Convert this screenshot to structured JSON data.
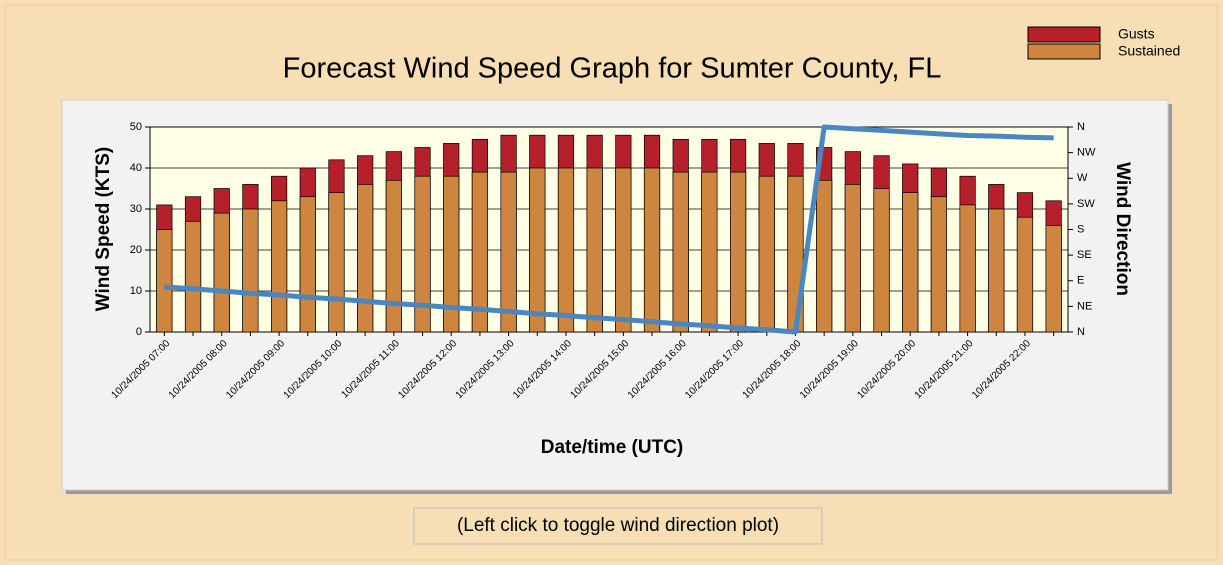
{
  "chart_data": {
    "type": "bar",
    "title": "Forecast Wind Speed Graph for Sumter County, FL",
    "xlabel": "Date/time (UTC)",
    "ylabel": "Wind Speed (KTS)",
    "y2label": "Wind Direction",
    "categories": [
      "10/24/2005 07:00",
      null,
      "10/24/2005 08:00",
      null,
      "10/24/2005 09:00",
      null,
      "10/24/2005 10:00",
      null,
      "10/24/2005 11:00",
      null,
      "10/24/2005 12:00",
      null,
      "10/24/2005 13:00",
      null,
      "10/24/2005 14:00",
      null,
      "10/24/2005 15:00",
      null,
      "10/24/2005 16:00",
      null,
      "10/24/2005 17:00",
      null,
      "10/24/2005 18:00",
      null,
      "10/24/2005 19:00",
      null,
      "10/24/2005 20:00",
      null,
      "10/24/2005 21:00",
      null,
      "10/24/2005 22:00",
      null
    ],
    "series": [
      {
        "name": "Gusts",
        "color": "#b5202a",
        "values": [
          31,
          33,
          35,
          36,
          38,
          40,
          42,
          43,
          44,
          45,
          46,
          47,
          48,
          48,
          48,
          48,
          48,
          48,
          47,
          47,
          47,
          46,
          46,
          45,
          44,
          43,
          41,
          40,
          38,
          36,
          34,
          32
        ]
      },
      {
        "name": "Sustained",
        "color": "#cd853f",
        "values": [
          25,
          27,
          29,
          30,
          32,
          33,
          34,
          36,
          37,
          38,
          38,
          39,
          39,
          40,
          40,
          40,
          40,
          40,
          39,
          39,
          39,
          38,
          38,
          37,
          36,
          35,
          34,
          33,
          31,
          30,
          28,
          26
        ]
      },
      {
        "name": "Wind Direction",
        "color": "#4a86c0",
        "axis": "y2",
        "values": [
          79,
          76,
          72,
          68,
          65,
          61,
          58,
          54,
          50,
          47,
          43,
          40,
          36,
          32,
          29,
          25,
          22,
          18,
          14,
          11,
          7,
          4,
          0,
          360,
          357,
          354,
          351,
          348,
          345,
          344,
          342,
          341
        ]
      }
    ],
    "ylim": [
      0,
      50
    ],
    "yticks": [
      0,
      10,
      20,
      30,
      40,
      50
    ],
    "y2lim": [
      0,
      360
    ],
    "y2ticks": [
      {
        "value": 0,
        "label": "N"
      },
      {
        "value": 45,
        "label": "NE"
      },
      {
        "value": 90,
        "label": "E"
      },
      {
        "value": 135,
        "label": "SE"
      },
      {
        "value": 180,
        "label": "S"
      },
      {
        "value": 225,
        "label": "SW"
      },
      {
        "value": 270,
        "label": "W"
      },
      {
        "value": 315,
        "label": "NW"
      },
      {
        "value": 360,
        "label": "N"
      }
    ],
    "grid": true,
    "legend": "top-right",
    "button": "(Left click to toggle wind direction plot)"
  }
}
